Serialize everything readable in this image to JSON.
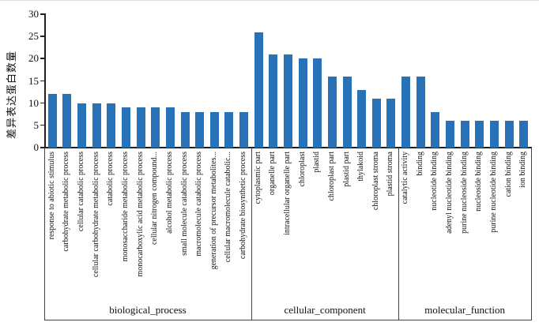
{
  "page": {
    "background": "#ffffff",
    "accent_bar_color": "#2873B8",
    "axis_color": "#222222"
  },
  "chart_data": {
    "type": "bar",
    "title": "",
    "ylabel": "差异表达蛋白数量",
    "xlabel": "",
    "ylim": [
      0,
      30
    ],
    "yticks": [
      0,
      5,
      10,
      15,
      20,
      25,
      30
    ],
    "grid": false,
    "legend": "none",
    "bar_color": "#2873B8",
    "groups": [
      {
        "label": "biological_process",
        "categories": [
          "response to abiotic stimulus",
          "carbohydrate metabolic process",
          "cellular catabolic process",
          "cellular carbohydrate metabolic process",
          "catabolic process",
          "monosaccharide metabolic process",
          "monocarboxylic acid metabolic process",
          "cellular nitrogen compound...",
          "alcohol metabolic process",
          "small molecule catabolic process",
          "macromolecule catabolic process",
          "generation of precursor metabolites...",
          "cellular macromolecule catabolic...",
          "carbohydrate biosynthetic process"
        ],
        "values": [
          12,
          12,
          10,
          10,
          10,
          9,
          9,
          9,
          9,
          8,
          8,
          8,
          8,
          8
        ]
      },
      {
        "label": "cellular_component",
        "categories": [
          "cytoplasmic part",
          "organelle part",
          "intracellular organelle part",
          "chloroplast",
          "plastid",
          "chloroplast part",
          "plastid part",
          "thylakoid",
          "chloroplast stroma",
          "plastid stroma"
        ],
        "values": [
          26,
          21,
          21,
          20,
          20,
          16,
          16,
          13,
          11,
          11
        ]
      },
      {
        "label": "molecular_function",
        "categories": [
          "catalytic activity",
          "binding",
          "nucleotide binding",
          "adenyl nucleotide binding",
          "purine nucleoside binding",
          "nucleoside binding",
          "purine nucleotide binding",
          "cation binding",
          "ion binding"
        ],
        "values": [
          16,
          16,
          8,
          6,
          6,
          6,
          6,
          6,
          6
        ]
      }
    ]
  }
}
